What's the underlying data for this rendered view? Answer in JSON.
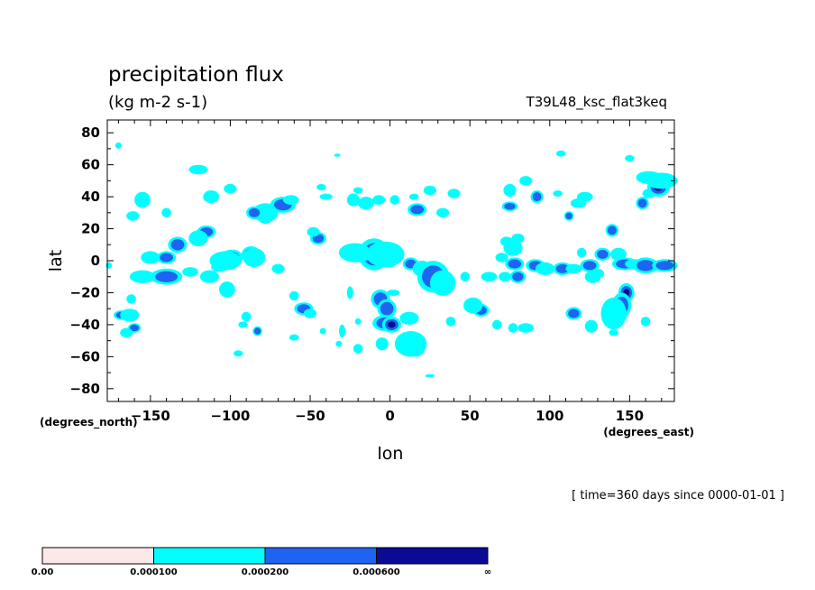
{
  "chart_data": {
    "type": "heatmap",
    "title": "precipitation flux",
    "units": "(kg m-2 s-1)",
    "run_label": "T39L48_ksc_flat3keq",
    "xlabel": "lon",
    "ylabel": "lat",
    "x_unit_label": "(degrees_east)",
    "y_unit_label": "(degrees_north)",
    "time_label": "[ time=360 days since 0000-01-01 ]",
    "xlim": [
      -177,
      178
    ],
    "ylim": [
      -88,
      88
    ],
    "x_ticks": [
      -150,
      -100,
      -50,
      0,
      50,
      100,
      150
    ],
    "x_tick_labels": [
      "−150",
      "−100",
      "−50",
      "0",
      "50",
      "100",
      "150"
    ],
    "y_ticks": [
      80,
      60,
      40,
      20,
      0,
      -20,
      -40,
      -60,
      -80
    ],
    "y_tick_labels": [
      "80",
      "60",
      "40",
      "20",
      "0",
      "−20",
      "−40",
      "−60",
      "−80"
    ],
    "levels": [
      0.0,
      0.0001,
      0.0002,
      0.0006
    ],
    "colorbar_labels": [
      "0.00",
      "0.000100",
      "0.000200",
      "0.000600",
      "∞"
    ],
    "level_colors": [
      "#fce8e8",
      "#00ffff",
      "#1e64f0",
      "#0a0a96"
    ],
    "cells": [
      [
        -161,
        28,
        4,
        3,
        1
      ],
      [
        -155,
        38,
        5,
        5,
        1
      ],
      [
        -140,
        30,
        3,
        3,
        1
      ],
      [
        -120,
        57,
        6,
        3,
        1
      ],
      [
        -112,
        40,
        5,
        4,
        1
      ],
      [
        -115,
        18,
        6,
        4,
        2
      ],
      [
        -120,
        14,
        6,
        5,
        1
      ],
      [
        -133,
        10,
        6,
        5,
        2
      ],
      [
        -140,
        2,
        6,
        4,
        2
      ],
      [
        -150,
        2,
        6,
        4,
        1
      ],
      [
        -155,
        -10,
        8,
        4,
        1
      ],
      [
        -140,
        -10,
        10,
        5,
        2
      ],
      [
        -125,
        -7,
        5,
        3,
        1
      ],
      [
        -113,
        -10,
        6,
        4,
        1
      ],
      [
        -107,
        -4,
        5,
        3,
        1
      ],
      [
        -102,
        -18,
        5,
        5,
        1
      ],
      [
        -99,
        2,
        7,
        5,
        2
      ],
      [
        -103,
        0,
        10,
        6,
        1
      ],
      [
        -87,
        4,
        6,
        5,
        2
      ],
      [
        -85,
        2,
        7,
        6,
        1
      ],
      [
        -78,
        30,
        8,
        6,
        1
      ],
      [
        -67,
        35,
        8,
        5,
        2
      ],
      [
        -62,
        38,
        5,
        3,
        1
      ],
      [
        -85,
        30,
        5,
        4,
        2
      ],
      [
        -100,
        45,
        4,
        3,
        1
      ],
      [
        -70,
        -5,
        4,
        3,
        1
      ],
      [
        -60,
        -22,
        3,
        3,
        1
      ],
      [
        -54,
        -30,
        6,
        4,
        2
      ],
      [
        -50,
        -33,
        4,
        3,
        1
      ],
      [
        -45,
        14,
        5,
        4,
        2
      ],
      [
        -48,
        18,
        4,
        3,
        1
      ],
      [
        -40,
        40,
        4,
        2,
        1
      ],
      [
        -23,
        38,
        4,
        4,
        1
      ],
      [
        -15,
        36,
        5,
        4,
        1
      ],
      [
        -20,
        44,
        3,
        2,
        1
      ],
      [
        -7,
        38,
        4,
        3,
        1
      ],
      [
        3,
        38,
        3,
        3,
        1
      ],
      [
        15,
        40,
        3,
        2,
        1
      ],
      [
        -10,
        2,
        6,
        8,
        3
      ],
      [
        -10,
        4,
        10,
        10,
        2
      ],
      [
        -20,
        4,
        8,
        5,
        2
      ],
      [
        -22,
        5,
        10,
        6,
        1
      ],
      [
        0,
        2,
        6,
        5,
        2
      ],
      [
        0,
        0,
        5,
        4,
        3
      ],
      [
        -3,
        4,
        12,
        8,
        1
      ],
      [
        13,
        -2,
        5,
        4,
        2
      ],
      [
        20,
        -5,
        6,
        5,
        1
      ],
      [
        28,
        -10,
        6,
        7,
        3
      ],
      [
        27,
        -10,
        10,
        10,
        2
      ],
      [
        33,
        -14,
        8,
        8,
        1
      ],
      [
        17,
        32,
        6,
        4,
        2
      ],
      [
        25,
        44,
        4,
        3,
        1
      ],
      [
        33,
        30,
        4,
        3,
        1
      ],
      [
        40,
        42,
        4,
        3,
        1
      ],
      [
        -6,
        -24,
        6,
        6,
        2
      ],
      [
        -2,
        -30,
        6,
        6,
        2
      ],
      [
        -3,
        -39,
        8,
        5,
        2
      ],
      [
        1,
        -40,
        6,
        5,
        3
      ],
      [
        12,
        -36,
        6,
        4,
        1
      ],
      [
        16,
        -55,
        6,
        5,
        2
      ],
      [
        13,
        -52,
        10,
        8,
        1
      ],
      [
        -5,
        -52,
        4,
        4,
        1
      ],
      [
        -20,
        -55,
        3,
        3,
        1
      ],
      [
        -30,
        -44,
        2,
        4,
        1
      ],
      [
        -32,
        -52,
        2,
        2,
        1
      ],
      [
        -42,
        -44,
        2,
        2,
        1
      ],
      [
        -20,
        -38,
        2,
        2,
        1
      ],
      [
        -25,
        -20,
        2,
        4,
        1
      ],
      [
        2,
        -20,
        4,
        2,
        1
      ],
      [
        47,
        -10,
        3,
        3,
        1
      ],
      [
        57,
        -31,
        5,
        4,
        2
      ],
      [
        52,
        -28,
        6,
        5,
        1
      ],
      [
        38,
        -38,
        3,
        3,
        1
      ],
      [
        62,
        -10,
        5,
        3,
        1
      ],
      [
        72,
        -10,
        4,
        3,
        1
      ],
      [
        67,
        -40,
        3,
        3,
        1
      ],
      [
        77,
        -42,
        3,
        3,
        1
      ],
      [
        77,
        8,
        6,
        5,
        1
      ],
      [
        73,
        12,
        4,
        3,
        1
      ],
      [
        78,
        -2,
        6,
        4,
        2
      ],
      [
        80,
        -10,
        5,
        4,
        2
      ],
      [
        80,
        14,
        4,
        3,
        1
      ],
      [
        70,
        2,
        4,
        3,
        1
      ],
      [
        91,
        -3,
        6,
        4,
        2
      ],
      [
        97,
        -5,
        6,
        4,
        1
      ],
      [
        108,
        -5,
        6,
        4,
        2
      ],
      [
        115,
        -5,
        5,
        3,
        1
      ],
      [
        125,
        -3,
        6,
        4,
        2
      ],
      [
        127,
        -10,
        5,
        4,
        1
      ],
      [
        120,
        5,
        3,
        3,
        1
      ],
      [
        133,
        4,
        5,
        4,
        2
      ],
      [
        130,
        -8,
        4,
        3,
        1
      ],
      [
        139,
        19,
        4,
        4,
        2
      ],
      [
        143,
        4,
        5,
        4,
        1
      ],
      [
        147,
        -2,
        8,
        4,
        2
      ],
      [
        153,
        -2,
        6,
        3,
        1
      ],
      [
        160,
        -3,
        8,
        5,
        2
      ],
      [
        172,
        -3,
        8,
        4,
        2
      ],
      [
        148,
        -20,
        5,
        6,
        3
      ],
      [
        145,
        -28,
        6,
        8,
        2
      ],
      [
        143,
        -35,
        5,
        4,
        2
      ],
      [
        140,
        -33,
        8,
        10,
        1
      ],
      [
        140,
        -45,
        3,
        2,
        1
      ],
      [
        126,
        -41,
        4,
        4,
        1
      ],
      [
        115,
        -33,
        5,
        4,
        2
      ],
      [
        85,
        -42,
        5,
        3,
        1
      ],
      [
        107,
        67,
        3,
        2,
        1
      ],
      [
        75,
        44,
        4,
        4,
        1
      ],
      [
        75,
        34,
        5,
        3,
        2
      ],
      [
        92,
        40,
        4,
        4,
        2
      ],
      [
        105,
        42,
        3,
        2,
        1
      ],
      [
        112,
        28,
        3,
        3,
        2
      ],
      [
        122,
        40,
        5,
        3,
        1
      ],
      [
        118,
        36,
        5,
        3,
        1
      ],
      [
        158,
        36,
        4,
        4,
        2
      ],
      [
        162,
        42,
        4,
        3,
        1
      ],
      [
        168,
        46,
        7,
        6,
        3
      ],
      [
        162,
        52,
        8,
        4,
        1
      ],
      [
        170,
        50,
        10,
        5,
        1
      ],
      [
        -168,
        -34,
        5,
        3,
        2
      ],
      [
        -163,
        -34,
        6,
        4,
        1
      ],
      [
        -160,
        -42,
        4,
        3,
        2
      ],
      [
        -162,
        -24,
        3,
        3,
        1
      ],
      [
        -165,
        -45,
        4,
        3,
        1
      ],
      [
        -176,
        -3,
        2,
        2,
        1
      ],
      [
        -170,
        72,
        2,
        2,
        1
      ],
      [
        -60,
        -48,
        3,
        2,
        1
      ],
      [
        -83,
        -44,
        3,
        3,
        2
      ],
      [
        -90,
        -35,
        3,
        3,
        1
      ],
      [
        -95,
        -58,
        3,
        2,
        1
      ],
      [
        -92,
        -40,
        3,
        2,
        1
      ],
      [
        -78,
        26,
        4,
        3,
        1
      ],
      [
        -43,
        46,
        3,
        2,
        1
      ],
      [
        -33,
        66,
        2,
        1,
        1
      ],
      [
        25,
        -72,
        3,
        1,
        1
      ],
      [
        85,
        50,
        4,
        3,
        1
      ],
      [
        160,
        -38,
        3,
        3,
        1
      ],
      [
        150,
        64,
        3,
        2,
        1
      ]
    ]
  }
}
